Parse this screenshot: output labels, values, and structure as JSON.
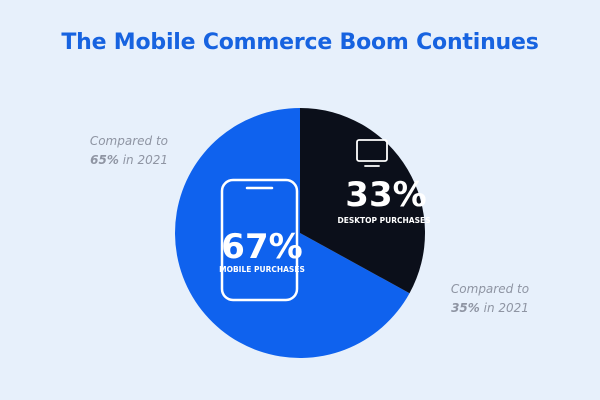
{
  "title": "The Mobile Commerce Boom Continues",
  "colors": {
    "mobile": "#0f62ee",
    "desktop": "#0b0f1a",
    "background": "#e7f0fb",
    "title": "#1763e0"
  },
  "chart_data": {
    "type": "pie",
    "title": "The Mobile Commerce Boom Continues",
    "slices": [
      {
        "label": "MOBILE PURCHASES",
        "value": 67,
        "value_label": "67%",
        "icon": "smartphone-icon",
        "color": "#0f62ee"
      },
      {
        "label": "DESKTOP PURCHASES",
        "value": 33,
        "value_label": "33%",
        "icon": "monitor-icon",
        "color": "#0b0f1a"
      }
    ],
    "annotations": [
      {
        "text_prefix": "Compared to",
        "value": "65%",
        "suffix": "in 2021",
        "refers_to": "MOBILE PURCHASES"
      },
      {
        "text_prefix": "Compared to",
        "value": "35%",
        "suffix": "in 2021",
        "refers_to": "DESKTOP PURCHASES"
      }
    ]
  }
}
